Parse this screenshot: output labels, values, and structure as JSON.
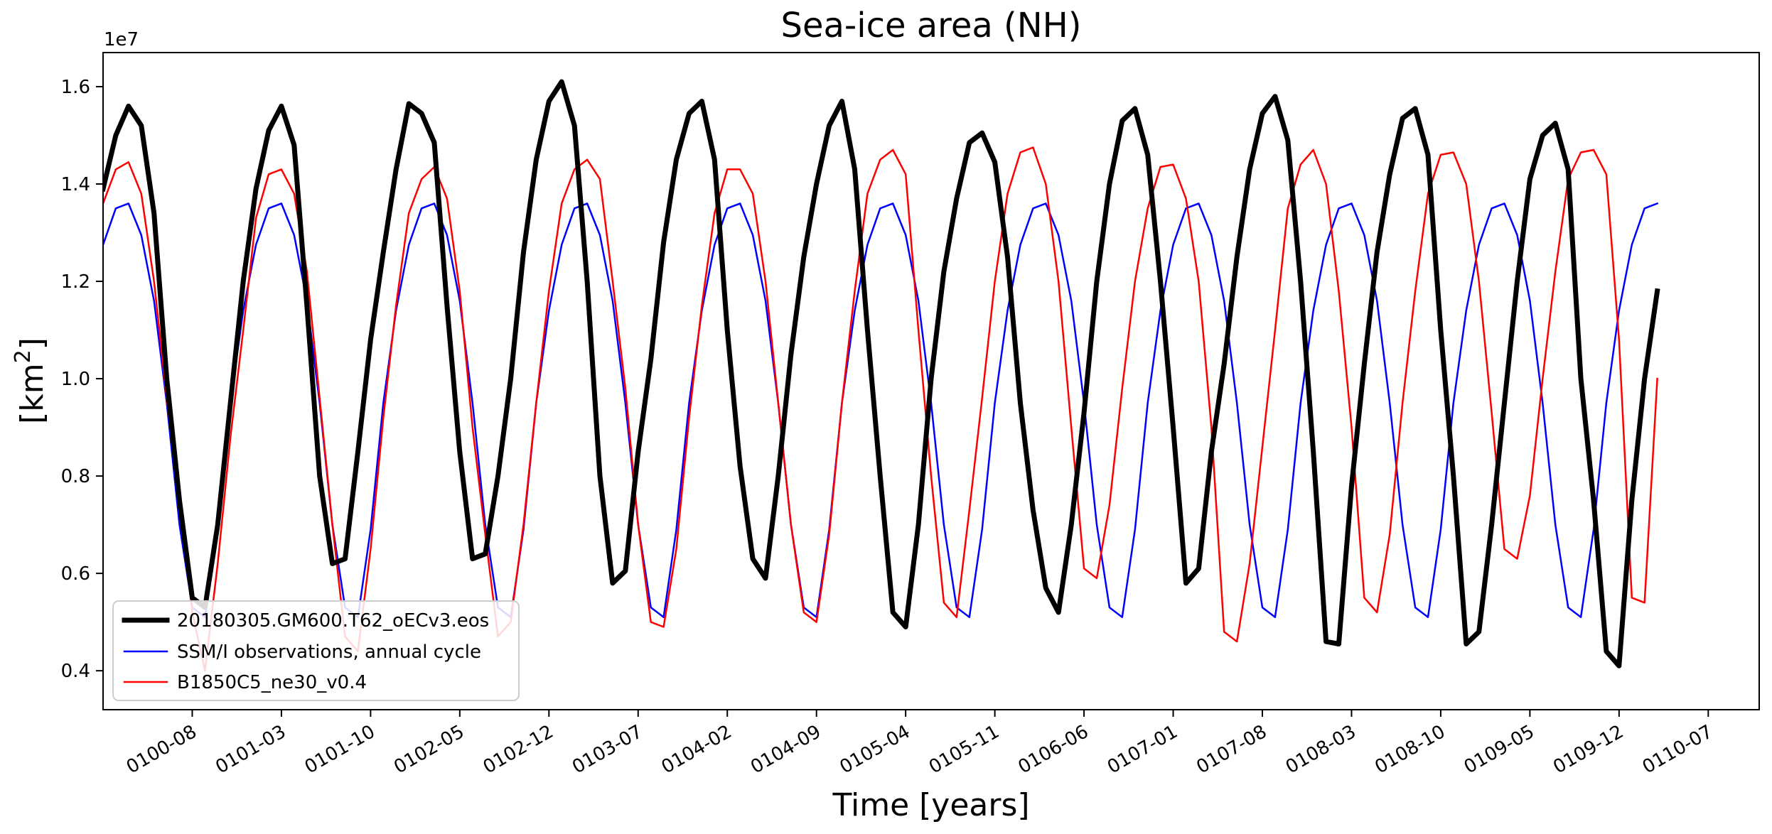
{
  "chart_data": {
    "type": "line",
    "title": "Sea-ice area (NH)",
    "xlabel": "Time [years]",
    "ylabel_text": "[km",
    "ylabel_sup": "2",
    "ylabel_close": "]",
    "y_multiplier_label": "1e7",
    "ylim": [
      0.32,
      1.67
    ],
    "yticks": [
      0.4,
      0.6,
      0.8,
      1.0,
      1.2,
      1.4,
      1.6
    ],
    "ytick_labels": [
      "0.4",
      "0.6",
      "0.8",
      "1.0",
      "1.2",
      "1.4",
      "1.6"
    ],
    "xlim": [
      0,
      130
    ],
    "xticks": [
      7,
      14,
      21,
      28,
      35,
      42,
      49,
      56,
      63,
      70,
      77,
      84,
      91,
      98,
      105,
      112,
      119,
      126
    ],
    "xtick_labels": [
      "0100-08",
      "0101-03",
      "0101-10",
      "0102-05",
      "0102-12",
      "0103-07",
      "0104-02",
      "0104-09",
      "0105-04",
      "0105-11",
      "0106-06",
      "0107-01",
      "0107-08",
      "0108-03",
      "0108-10",
      "0109-05",
      "0109-12",
      "0110-07"
    ],
    "legend_location": "lower-left",
    "series": [
      {
        "name": "20180305.GM600.T62_oECv3.eos",
        "color": "#000000",
        "values": [
          1.39,
          1.5,
          1.56,
          1.52,
          1.34,
          1.0,
          0.75,
          0.55,
          0.53,
          0.7,
          0.95,
          1.2,
          1.39,
          1.51,
          1.56,
          1.48,
          1.15,
          0.8,
          0.62,
          0.63,
          0.85,
          1.08,
          1.26,
          1.43,
          1.565,
          1.545,
          1.485,
          1.15,
          0.85,
          0.63,
          0.64,
          0.8,
          1.0,
          1.26,
          1.45,
          1.57,
          1.61,
          1.52,
          1.2,
          0.8,
          0.58,
          0.605,
          0.85,
          1.04,
          1.28,
          1.45,
          1.545,
          1.57,
          1.45,
          1.1,
          0.82,
          0.63,
          0.59,
          0.8,
          1.05,
          1.25,
          1.4,
          1.52,
          1.57,
          1.43,
          1.1,
          0.8,
          0.52,
          0.49,
          0.7,
          1.0,
          1.22,
          1.37,
          1.485,
          1.505,
          1.445,
          1.25,
          0.95,
          0.73,
          0.57,
          0.52,
          0.7,
          0.93,
          1.2,
          1.4,
          1.53,
          1.555,
          1.46,
          1.2,
          0.9,
          0.58,
          0.61,
          0.85,
          1.03,
          1.25,
          1.43,
          1.545,
          1.58,
          1.49,
          1.2,
          0.85,
          0.46,
          0.455,
          0.78,
          1.03,
          1.26,
          1.42,
          1.535,
          1.555,
          1.46,
          1.1,
          0.8,
          0.455,
          0.48,
          0.7,
          0.95,
          1.2,
          1.41,
          1.5,
          1.525,
          1.43,
          1.0,
          0.75,
          0.44,
          0.41,
          0.75,
          1.0,
          1.18
        ]
      },
      {
        "name": "SSM/I observations, annual cycle",
        "color": "#0000ff",
        "values": [
          1.275,
          1.35,
          1.36,
          1.295,
          1.16,
          0.95,
          0.7,
          0.53,
          0.51,
          0.69,
          0.95,
          1.14,
          1.275,
          1.35,
          1.36,
          1.295,
          1.16,
          0.95,
          0.7,
          0.53,
          0.51,
          0.69,
          0.95,
          1.14,
          1.275,
          1.35,
          1.36,
          1.295,
          1.16,
          0.95,
          0.7,
          0.53,
          0.51,
          0.69,
          0.95,
          1.14,
          1.275,
          1.35,
          1.36,
          1.295,
          1.16,
          0.95,
          0.7,
          0.53,
          0.51,
          0.69,
          0.95,
          1.14,
          1.275,
          1.35,
          1.36,
          1.295,
          1.16,
          0.95,
          0.7,
          0.53,
          0.51,
          0.69,
          0.95,
          1.14,
          1.275,
          1.35,
          1.36,
          1.295,
          1.16,
          0.95,
          0.7,
          0.53,
          0.51,
          0.69,
          0.95,
          1.14,
          1.275,
          1.35,
          1.36,
          1.295,
          1.16,
          0.95,
          0.7,
          0.53,
          0.51,
          0.69,
          0.95,
          1.14,
          1.275,
          1.35,
          1.36,
          1.295,
          1.16,
          0.95,
          0.7,
          0.53,
          0.51,
          0.69,
          0.95,
          1.14,
          1.275,
          1.35,
          1.36,
          1.295,
          1.16,
          0.95,
          0.7,
          0.53,
          0.51,
          0.69,
          0.95,
          1.14,
          1.275,
          1.35,
          1.36,
          1.295,
          1.16,
          0.95,
          0.7,
          0.53,
          0.51,
          0.69,
          0.95,
          1.14,
          1.275,
          1.35,
          1.36
        ]
      },
      {
        "name": "B1850C5_ne30_v0.4",
        "color": "#ff0000",
        "values": [
          1.36,
          1.43,
          1.445,
          1.38,
          1.2,
          0.96,
          0.75,
          0.52,
          0.4,
          0.62,
          0.88,
          1.1,
          1.33,
          1.42,
          1.43,
          1.38,
          1.22,
          0.96,
          0.7,
          0.47,
          0.44,
          0.65,
          0.92,
          1.15,
          1.34,
          1.41,
          1.435,
          1.37,
          1.18,
          0.9,
          0.68,
          0.47,
          0.5,
          0.7,
          0.95,
          1.18,
          1.36,
          1.43,
          1.45,
          1.41,
          1.2,
          0.98,
          0.7,
          0.5,
          0.49,
          0.65,
          0.92,
          1.15,
          1.34,
          1.43,
          1.43,
          1.38,
          1.2,
          0.95,
          0.7,
          0.52,
          0.5,
          0.68,
          0.95,
          1.18,
          1.38,
          1.45,
          1.47,
          1.42,
          1.1,
          0.8,
          0.54,
          0.51,
          0.73,
          0.96,
          1.2,
          1.38,
          1.465,
          1.475,
          1.4,
          1.2,
          0.9,
          0.61,
          0.59,
          0.74,
          0.98,
          1.2,
          1.35,
          1.435,
          1.44,
          1.37,
          1.2,
          0.9,
          0.48,
          0.46,
          0.62,
          0.86,
          1.1,
          1.35,
          1.44,
          1.47,
          1.4,
          1.18,
          0.9,
          0.55,
          0.52,
          0.68,
          0.95,
          1.18,
          1.38,
          1.46,
          1.465,
          1.4,
          1.2,
          0.93,
          0.65,
          0.63,
          0.76,
          1.0,
          1.22,
          1.41,
          1.465,
          1.47,
          1.42,
          1.08,
          0.55,
          0.54,
          1.0
        ]
      }
    ]
  }
}
